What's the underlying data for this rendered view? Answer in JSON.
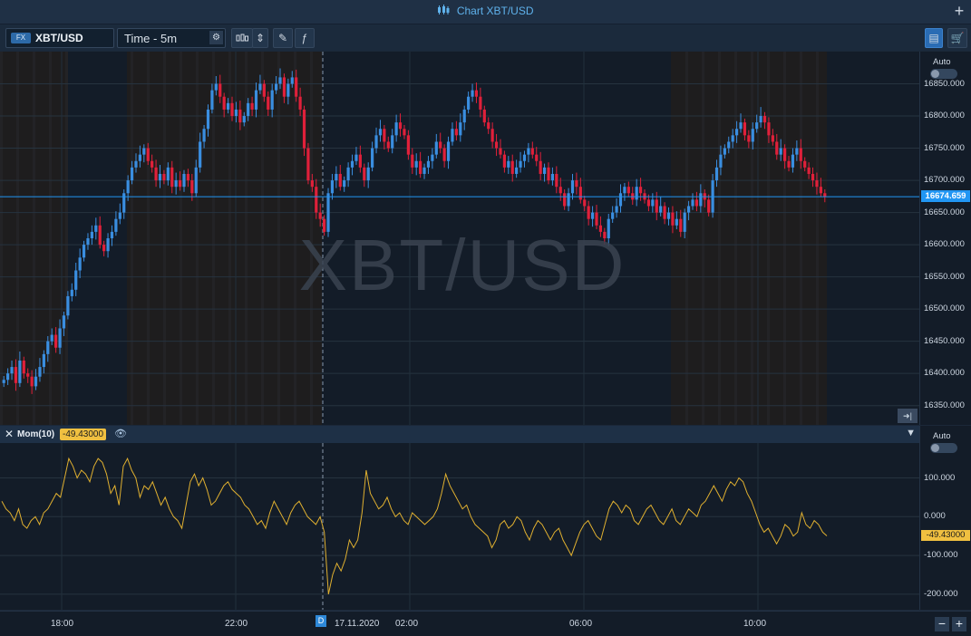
{
  "window": {
    "title": "Chart XBT/USD"
  },
  "toolbar": {
    "symbol_badge": "FX",
    "symbol": "XBT/USD",
    "timeframe": "Time - 5m"
  },
  "watermark": "XBT/USD",
  "price_axis": {
    "auto_label": "Auto",
    "ticks": [
      "16850.000",
      "16800.000",
      "16750.000",
      "16700.000",
      "16650.000",
      "16600.000",
      "16550.000",
      "16500.000",
      "16450.000",
      "16400.000",
      "16350.000"
    ],
    "current_price": "16674.659"
  },
  "indicator": {
    "name": "Mom(10)",
    "value": "-49.43000",
    "auto_label": "Auto",
    "ticks": [
      "100.000",
      "0.000",
      "-100.000",
      "-200.000"
    ]
  },
  "time_axis": {
    "labels": [
      "18:00",
      "22:00",
      "17.11.2020",
      "02:00",
      "06:00",
      "10:00"
    ],
    "day_marker": "D"
  },
  "colors": {
    "up": "#3a8ee0",
    "down": "#e0203a",
    "momentum": "#e0b030",
    "price_line": "#2196f3"
  },
  "chart_data": [
    {
      "type": "candlestick",
      "title": "XBT/USD",
      "ylim": [
        16320,
        16900
      ],
      "series": [
        {
          "values": [
            16390,
            16400,
            16410,
            16385,
            16420,
            16400,
            16395,
            16380,
            16395,
            16410,
            16430,
            16450,
            16460,
            16440,
            16470,
            16490,
            16520,
            16530,
            16560,
            16580,
            16600,
            16610,
            16620,
            16630,
            16600,
            16590,
            16610,
            16620,
            16640,
            16650,
            16680,
            16700,
            16720,
            16730,
            16740,
            16750,
            16730,
            16720,
            16700,
            16710,
            16700,
            16720,
            16690,
            16700,
            16690,
            16710,
            16700,
            16680,
            16720,
            16760,
            16780,
            16810,
            16840,
            16850,
            16830,
            16810,
            16820,
            16800,
            16810,
            16790,
            16800,
            16820,
            16810,
            16840,
            16850,
            16830,
            16810,
            16840,
            16850,
            16860,
            16830,
            16850,
            16860,
            16830,
            16810,
            16750,
            16700,
            16690,
            16650,
            16640,
            16620,
            16680,
            16700,
            16710,
            16690,
            16700,
            16720,
            16730,
            16740,
            16720,
            16700,
            16720,
            16750,
            16770,
            16780,
            16760,
            16750,
            16770,
            16790,
            16780,
            16770,
            16740,
            16720,
            16730,
            16710,
            16720,
            16730,
            16740,
            16760,
            16750,
            16730,
            16760,
            16780,
            16770,
            16790,
            16810,
            16830,
            16840,
            16830,
            16810,
            16790,
            16780,
            16760,
            16750,
            16740,
            16720,
            16730,
            16710,
            16720,
            16730,
            16740,
            16750,
            16740,
            16730,
            16710,
            16720,
            16700,
            16710,
            16690,
            16680,
            16660,
            16680,
            16700,
            16690,
            16670,
            16660,
            16640,
            16650,
            16630,
            16620,
            16610,
            16640,
            16650,
            16660,
            16680,
            16690,
            16680,
            16670,
            16690,
            16680,
            16670,
            16660,
            16670,
            16650,
            16660,
            16640,
            16650,
            16630,
            16640,
            16620,
            16650,
            16660,
            16670,
            16660,
            16680,
            16670,
            16650,
            16700,
            16720,
            16740,
            16750,
            16760,
            16770,
            16780,
            16790,
            16770,
            16760,
            16780,
            16790,
            16800,
            16790,
            16770,
            16760,
            16740,
            16750,
            16730,
            16720,
            16740,
            16750,
            16730,
            16720,
            16710,
            16700,
            16690,
            16680,
            16674
          ]
        }
      ]
    },
    {
      "type": "line",
      "title": "Mom(10)",
      "ylim": [
        -240,
        190
      ],
      "series": [
        {
          "name": "Mom(10)",
          "values": [
            40,
            20,
            10,
            -10,
            20,
            -20,
            -30,
            -10,
            0,
            -20,
            10,
            20,
            40,
            60,
            50,
            100,
            150,
            130,
            100,
            120,
            110,
            90,
            130,
            150,
            140,
            110,
            60,
            80,
            30,
            130,
            150,
            120,
            100,
            50,
            80,
            70,
            90,
            60,
            30,
            50,
            20,
            0,
            -10,
            -30,
            30,
            90,
            110,
            80,
            100,
            70,
            30,
            40,
            60,
            80,
            90,
            70,
            60,
            50,
            30,
            20,
            0,
            -20,
            -10,
            -30,
            10,
            40,
            20,
            0,
            -20,
            10,
            30,
            40,
            20,
            0,
            -10,
            -20,
            0,
            -40,
            -200,
            -150,
            -120,
            -140,
            -110,
            -60,
            -80,
            -60,
            10,
            120,
            60,
            40,
            20,
            30,
            50,
            20,
            0,
            10,
            -10,
            -20,
            10,
            0,
            -10,
            -20,
            -10,
            0,
            20,
            60,
            110,
            80,
            60,
            40,
            20,
            30,
            0,
            -20,
            -30,
            -40,
            -50,
            -80,
            -60,
            -20,
            -10,
            -30,
            -20,
            0,
            -10,
            -40,
            -60,
            -30,
            -10,
            -20,
            -40,
            -60,
            -40,
            -30,
            -60,
            -80,
            -100,
            -70,
            -40,
            -20,
            -10,
            -30,
            -50,
            -60,
            -20,
            20,
            40,
            30,
            10,
            30,
            20,
            -10,
            -20,
            0,
            20,
            30,
            10,
            -10,
            -20,
            0,
            20,
            -10,
            -20,
            0,
            20,
            10,
            0,
            30,
            40,
            60,
            80,
            60,
            40,
            70,
            90,
            80,
            100,
            90,
            60,
            40,
            10,
            -20,
            -40,
            -30,
            -50,
            -70,
            -50,
            -20,
            -30,
            -50,
            -40,
            10,
            -20,
            -30,
            -10,
            -20,
            -40,
            -49.43
          ]
        }
      ]
    }
  ]
}
